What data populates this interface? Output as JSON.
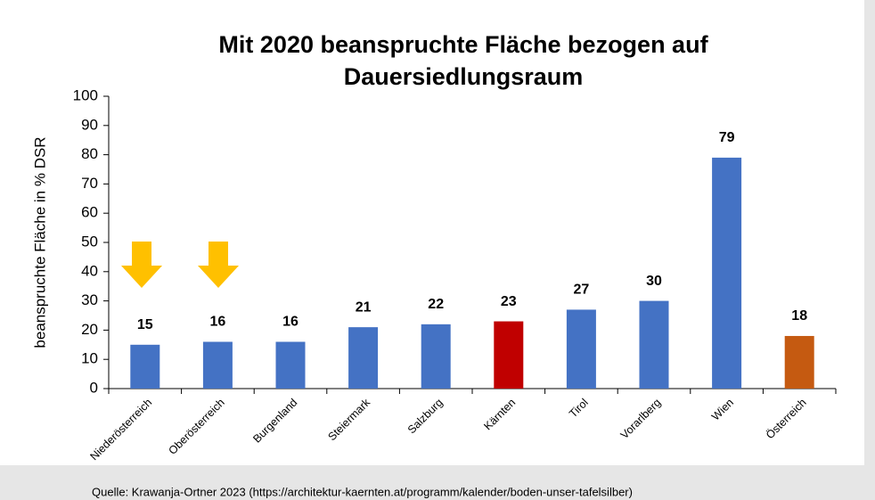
{
  "chart_data": {
    "type": "bar",
    "title": [
      "Mit 2020 beanspruchte Fläche bezogen auf",
      "Dauersiedlungsraum"
    ],
    "ylabel": "beanspruchte Fläche in % DSR",
    "categories": [
      "Niederösterreich",
      "Oberösterreich",
      "Burgenland",
      "Steiermark",
      "Salzburg",
      "Kärnten",
      "Tirol",
      "Vorarlberg",
      "Wien",
      "Österreich"
    ],
    "values": [
      15,
      16,
      16,
      21,
      22,
      23,
      27,
      30,
      79,
      18
    ],
    "colors": [
      "#4472c4",
      "#4472c4",
      "#4472c4",
      "#4472c4",
      "#4472c4",
      "#c00000",
      "#4472c4",
      "#4472c4",
      "#4472c4",
      "#c55a11"
    ],
    "ylim": [
      0,
      100
    ],
    "yticks": [
      0,
      10,
      20,
      30,
      40,
      50,
      60,
      70,
      80,
      90,
      100
    ],
    "grid": false,
    "source": "Quelle: Krawanja-Ortner 2023 (https://architektur-kaernten.at/programm/kalender/boden-unser-tafelsilber)"
  }
}
